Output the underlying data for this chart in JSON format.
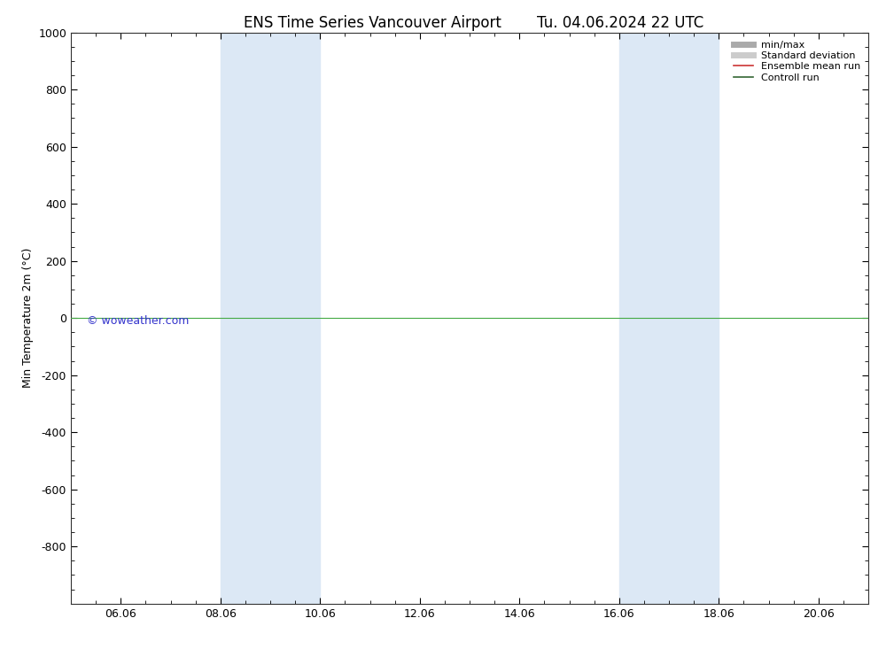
{
  "title": "ENS Time Series Vancouver Airport",
  "title2": "Tu. 04.06.2024 22 UTC",
  "ylabel": "Min Temperature 2m (°C)",
  "watermark": "© woweather.com",
  "xtick_labels": [
    "06.06",
    "08.06",
    "10.06",
    "12.06",
    "14.06",
    "16.06",
    "18.06",
    "20.06"
  ],
  "xtick_positions": [
    1.0,
    3.0,
    5.0,
    7.0,
    9.0,
    11.0,
    13.0,
    15.0
  ],
  "x_min": 0.0,
  "x_max": 16.0,
  "ylim_top": -1000,
  "ylim_bottom": 1000,
  "yticks": [
    -800,
    -600,
    -400,
    -200,
    0,
    200,
    400,
    600,
    800,
    1000
  ],
  "shaded_bands": [
    {
      "x_start": 3.0,
      "x_end": 5.0
    },
    {
      "x_start": 11.0,
      "x_end": 13.0
    }
  ],
  "hline_y": 0,
  "hline_color": "#44aa44",
  "background_color": "#ffffff",
  "plot_bg_color": "#ffffff",
  "shaded_color": "#dce8f5",
  "legend_entries": [
    {
      "label": "min/max",
      "color": "#aaaaaa",
      "lw": 5
    },
    {
      "label": "Standard deviation",
      "color": "#cccccc",
      "lw": 5
    },
    {
      "label": "Ensemble mean run",
      "color": "#cc3333",
      "lw": 1.2
    },
    {
      "label": "Controll run",
      "color": "#336633",
      "lw": 1.2
    }
  ],
  "watermark_color": "#3333cc",
  "title_fontsize": 12,
  "ylabel_fontsize": 9,
  "tick_fontsize": 9,
  "legend_fontsize": 8,
  "x_minor_ticks_per_major": 4
}
